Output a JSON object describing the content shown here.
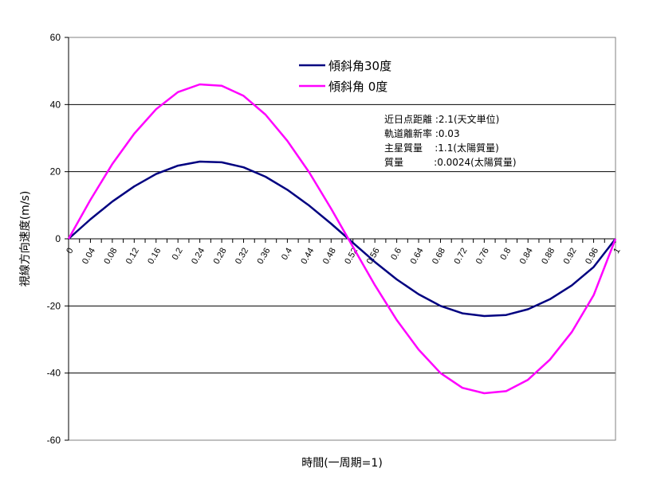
{
  "chart_data": {
    "type": "line",
    "title": "",
    "xlabel": "時間(一周期=1)",
    "ylabel": "視線方向速度(m/s)",
    "ylim": [
      -60,
      60
    ],
    "yticks": [
      -60,
      -40,
      -20,
      0,
      20,
      40,
      60
    ],
    "xlim": [
      0,
      1
    ],
    "xtick_labels": [
      "0",
      "0.04",
      "0.08",
      "0.12",
      "0.16",
      "0.2",
      "0.24",
      "0.28",
      "0.32",
      "0.36",
      "0.4",
      "0.44",
      "0.48",
      "0.52",
      "0.56",
      "0.6",
      "0.64",
      "0.68",
      "0.72",
      "0.76",
      "0.8",
      "0.84",
      "0.88",
      "0.92",
      "0.96",
      "1"
    ],
    "grid": "horizontal",
    "legend_position": "top-center",
    "x": [
      0,
      0.04,
      0.08,
      0.12,
      0.16,
      0.2,
      0.24,
      0.28,
      0.32,
      0.36,
      0.4,
      0.44,
      0.48,
      0.52,
      0.56,
      0.6,
      0.64,
      0.68,
      0.72,
      0.76,
      0.8,
      0.84,
      0.88,
      0.92,
      0.96,
      1
    ],
    "series": [
      {
        "name": "傾斜角30度",
        "color": "#000080",
        "values": [
          0,
          5.8,
          11.1,
          15.6,
          19.3,
          21.8,
          23.0,
          22.8,
          21.3,
          18.5,
          14.6,
          9.9,
          4.5,
          -1.2,
          -6.9,
          -12.1,
          -16.5,
          -20.0,
          -22.2,
          -23.0,
          -22.7,
          -21.0,
          -18.0,
          -13.9,
          -8.4,
          0
        ]
      },
      {
        "name": "傾斜角 0度",
        "color": "#ff00ff",
        "values": [
          0,
          11.6,
          22.3,
          31.3,
          38.6,
          43.7,
          46.0,
          45.6,
          42.6,
          37.0,
          29.2,
          19.8,
          9.0,
          -2.4,
          -13.8,
          -24.2,
          -33.0,
          -40.0,
          -44.4,
          -46.0,
          -45.4,
          -42.0,
          -36.0,
          -27.8,
          -16.8,
          0
        ]
      }
    ],
    "annotations": [
      "近日点距離 :2.1(天文単位)",
      "軌道離新率 :0.03",
      "主星質量    :1.1(太陽質量)",
      "質量          :0.0024(太陽質量)"
    ]
  }
}
